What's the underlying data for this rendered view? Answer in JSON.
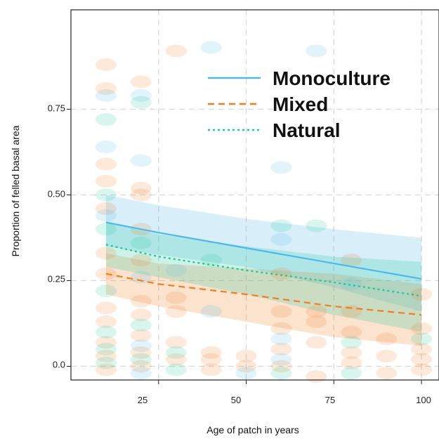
{
  "chart_data": {
    "type": "line",
    "xlabel": "Age of patch in years",
    "ylabel": "Proportion of felled basal area",
    "xlim": [
      0,
      105
    ],
    "ylim": [
      -0.04,
      1.04
    ],
    "x_ticks": [
      25,
      50,
      75,
      100
    ],
    "y_ticks": [
      0.0,
      0.25,
      0.5,
      0.75
    ],
    "x_tick_labels": [
      "25",
      "50",
      "75",
      "100"
    ],
    "y_tick_labels": [
      "0.0",
      "0.25",
      "0.50",
      "0.75"
    ],
    "grid": true,
    "legend_position": "top-right",
    "series": [
      {
        "name": "Monoculture",
        "color": "#4db8ea",
        "line_style": "solid",
        "x": [
          10,
          25,
          50,
          75,
          100
        ],
        "y": [
          0.42,
          0.39,
          0.345,
          0.3,
          0.255
        ],
        "ci_lower": [
          0.35,
          0.325,
          0.29,
          0.23,
          0.16
        ],
        "ci_upper": [
          0.5,
          0.47,
          0.43,
          0.4,
          0.375
        ]
      },
      {
        "name": "Mixed",
        "color": "#f07e22",
        "line_style": "dashed",
        "x": [
          10,
          25,
          50,
          75,
          100
        ],
        "y": [
          0.27,
          0.24,
          0.21,
          0.175,
          0.15
        ],
        "ci_lower": [
          0.21,
          0.175,
          0.13,
          0.085,
          0.06
        ],
        "ci_upper": [
          0.33,
          0.3,
          0.285,
          0.27,
          0.24
        ]
      },
      {
        "name": "Natural",
        "color": "#1ac99a",
        "line_style": "dotted",
        "x": [
          10,
          25,
          50,
          75,
          100
        ],
        "y": [
          0.355,
          0.32,
          0.28,
          0.245,
          0.205
        ],
        "ci_lower": [
          0.29,
          0.26,
          0.21,
          0.15,
          0.1
        ],
        "ci_upper": [
          0.42,
          0.385,
          0.35,
          0.32,
          0.305
        ]
      }
    ],
    "observations": [
      {
        "x": 10,
        "y": 0.88,
        "group": "Mixed"
      },
      {
        "x": 10,
        "y": 0.81,
        "group": "Mixed"
      },
      {
        "x": 10,
        "y": 0.79,
        "group": "Monoculture"
      },
      {
        "x": 10,
        "y": 0.72,
        "group": "Natural"
      },
      {
        "x": 10,
        "y": 0.64,
        "group": "Monoculture"
      },
      {
        "x": 10,
        "y": 0.59,
        "group": "Mixed"
      },
      {
        "x": 10,
        "y": 0.54,
        "group": "Mixed"
      },
      {
        "x": 10,
        "y": 0.5,
        "group": "Natural"
      },
      {
        "x": 10,
        "y": 0.46,
        "group": "Mixed"
      },
      {
        "x": 10,
        "y": 0.44,
        "group": "Monoculture"
      },
      {
        "x": 10,
        "y": 0.4,
        "group": "Natural"
      },
      {
        "x": 10,
        "y": 0.33,
        "group": "Mixed"
      },
      {
        "x": 10,
        "y": 0.27,
        "group": "Mixed"
      },
      {
        "x": 10,
        "y": 0.22,
        "group": "Natural"
      },
      {
        "x": 10,
        "y": 0.17,
        "group": "Mixed"
      },
      {
        "x": 10,
        "y": 0.13,
        "group": "Mixed"
      },
      {
        "x": 10,
        "y": 0.1,
        "group": "Natural"
      },
      {
        "x": 10,
        "y": 0.07,
        "group": "Mixed"
      },
      {
        "x": 10,
        "y": 0.05,
        "group": "Natural"
      },
      {
        "x": 10,
        "y": 0.03,
        "group": "Mixed"
      },
      {
        "x": 10,
        "y": 0.01,
        "group": "Natural"
      },
      {
        "x": 10,
        "y": -0.01,
        "group": "Mixed"
      },
      {
        "x": 20,
        "y": 0.83,
        "group": "Mixed"
      },
      {
        "x": 20,
        "y": 0.79,
        "group": "Monoculture"
      },
      {
        "x": 20,
        "y": 0.77,
        "group": "Natural"
      },
      {
        "x": 20,
        "y": 0.6,
        "group": "Monoculture"
      },
      {
        "x": 20,
        "y": 0.52,
        "group": "Mixed"
      },
      {
        "x": 20,
        "y": 0.5,
        "group": "Mixed"
      },
      {
        "x": 20,
        "y": 0.4,
        "group": "Mixed"
      },
      {
        "x": 20,
        "y": 0.36,
        "group": "Natural"
      },
      {
        "x": 20,
        "y": 0.31,
        "group": "Mixed"
      },
      {
        "x": 20,
        "y": 0.26,
        "group": "Monoculture"
      },
      {
        "x": 20,
        "y": 0.19,
        "group": "Mixed"
      },
      {
        "x": 20,
        "y": 0.15,
        "group": "Mixed"
      },
      {
        "x": 20,
        "y": 0.12,
        "group": "Natural"
      },
      {
        "x": 20,
        "y": 0.09,
        "group": "Mixed"
      },
      {
        "x": 20,
        "y": 0.06,
        "group": "Monoculture"
      },
      {
        "x": 20,
        "y": 0.04,
        "group": "Mixed"
      },
      {
        "x": 20,
        "y": 0.02,
        "group": "Natural"
      },
      {
        "x": 20,
        "y": 0.0,
        "group": "Mixed"
      },
      {
        "x": 20,
        "y": -0.02,
        "group": "Monoculture"
      },
      {
        "x": 30,
        "y": 0.92,
        "group": "Mixed"
      },
      {
        "x": 30,
        "y": 0.28,
        "group": "Monoculture"
      },
      {
        "x": 30,
        "y": 0.2,
        "group": "Mixed"
      },
      {
        "x": 30,
        "y": 0.16,
        "group": "Mixed"
      },
      {
        "x": 30,
        "y": 0.07,
        "group": "Mixed"
      },
      {
        "x": 30,
        "y": 0.04,
        "group": "Natural"
      },
      {
        "x": 30,
        "y": 0.02,
        "group": "Mixed"
      },
      {
        "x": 30,
        "y": -0.01,
        "group": "Natural"
      },
      {
        "x": 40,
        "y": 0.93,
        "group": "Monoculture"
      },
      {
        "x": 40,
        "y": 0.31,
        "group": "Natural"
      },
      {
        "x": 40,
        "y": 0.16,
        "group": "Monoculture"
      },
      {
        "x": 40,
        "y": 0.04,
        "group": "Mixed"
      },
      {
        "x": 40,
        "y": 0.02,
        "group": "Mixed"
      },
      {
        "x": 40,
        "y": -0.01,
        "group": "Mixed"
      },
      {
        "x": 50,
        "y": 0.03,
        "group": "Mixed"
      },
      {
        "x": 50,
        "y": 0.0,
        "group": "Mixed"
      },
      {
        "x": 50,
        "y": -0.02,
        "group": "Monoculture"
      },
      {
        "x": 60,
        "y": 0.58,
        "group": "Monoculture"
      },
      {
        "x": 60,
        "y": 0.41,
        "group": "Natural"
      },
      {
        "x": 60,
        "y": 0.37,
        "group": "Monoculture"
      },
      {
        "x": 60,
        "y": 0.27,
        "group": "Mixed"
      },
      {
        "x": 60,
        "y": 0.16,
        "group": "Mixed"
      },
      {
        "x": 60,
        "y": 0.11,
        "group": "Mixed"
      },
      {
        "x": 60,
        "y": 0.08,
        "group": "Monoculture"
      },
      {
        "x": 60,
        "y": 0.05,
        "group": "Mixed"
      },
      {
        "x": 60,
        "y": 0.02,
        "group": "Monoculture"
      },
      {
        "x": 60,
        "y": 0.0,
        "group": "Mixed"
      },
      {
        "x": 60,
        "y": -0.02,
        "group": "Natural"
      },
      {
        "x": 70,
        "y": 0.92,
        "group": "Monoculture"
      },
      {
        "x": 70,
        "y": 0.41,
        "group": "Natural"
      },
      {
        "x": 70,
        "y": 0.16,
        "group": "Mixed"
      },
      {
        "x": 70,
        "y": 0.13,
        "group": "Mixed"
      },
      {
        "x": 70,
        "y": 0.07,
        "group": "Mixed"
      },
      {
        "x": 70,
        "y": -0.03,
        "group": "Mixed"
      },
      {
        "x": 80,
        "y": 0.31,
        "group": "Mixed"
      },
      {
        "x": 80,
        "y": 0.24,
        "group": "Monoculture"
      },
      {
        "x": 80,
        "y": 0.16,
        "group": "Mixed"
      },
      {
        "x": 80,
        "y": 0.1,
        "group": "Mixed"
      },
      {
        "x": 80,
        "y": 0.07,
        "group": "Natural"
      },
      {
        "x": 80,
        "y": 0.04,
        "group": "Mixed"
      },
      {
        "x": 80,
        "y": 0.01,
        "group": "Mixed"
      },
      {
        "x": 80,
        "y": -0.02,
        "group": "Natural"
      },
      {
        "x": 90,
        "y": 0.08,
        "group": "Mixed"
      },
      {
        "x": 90,
        "y": 0.03,
        "group": "Mixed"
      },
      {
        "x": 90,
        "y": -0.02,
        "group": "Mixed"
      },
      {
        "x": 100,
        "y": 0.21,
        "group": "Mixed"
      },
      {
        "x": 100,
        "y": 0.11,
        "group": "Mixed"
      },
      {
        "x": 100,
        "y": 0.08,
        "group": "Natural"
      },
      {
        "x": 100,
        "y": 0.05,
        "group": "Mixed"
      },
      {
        "x": 100,
        "y": 0.02,
        "group": "Mixed"
      },
      {
        "x": 100,
        "y": -0.01,
        "group": "Mixed"
      }
    ]
  }
}
